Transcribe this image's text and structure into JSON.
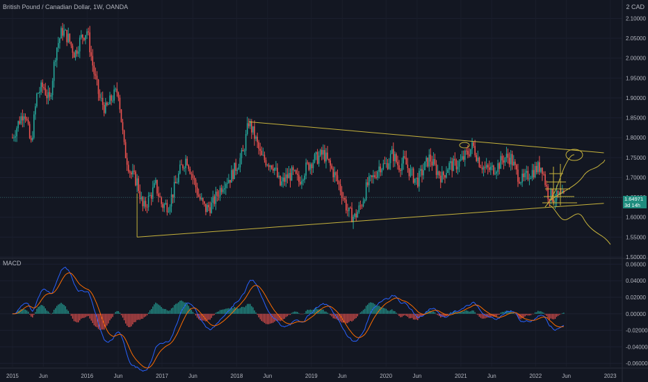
{
  "header": {
    "symbol": "British Pound / Canadian Dollar, 1W, OANDA",
    "currency": "2 CAD"
  },
  "price_tag": {
    "price": "1.64971",
    "countdown": "3d 14h"
  },
  "macd_title": "MACD",
  "chart_data": [
    {
      "type": "candlestick",
      "title": "British Pound / Canadian Dollar, 1W, OANDA",
      "y_ticks": [
        "2.10000",
        "2.05000",
        "2.00000",
        "1.95000",
        "1.90000",
        "1.85000",
        "1.80000",
        "1.75000",
        "1.70000",
        "1.65000",
        "1.60000",
        "1.55000",
        "1.50000"
      ],
      "x_ticks": [
        "2015",
        "Jun",
        "2016",
        "Jun",
        "2017",
        "Jun",
        "2018",
        "Jun",
        "2019",
        "Jun",
        "2020",
        "Jun",
        "2021",
        "Jun",
        "2022",
        "Jun",
        "2023"
      ],
      "ylim": [
        1.5,
        2.12
      ],
      "last_price": 1.64971,
      "close_series": [
        [
          "2015-01-01",
          1.8
        ],
        [
          "2015-02-01",
          1.84
        ],
        [
          "2015-03-01",
          1.87
        ],
        [
          "2015-04-01",
          1.78
        ],
        [
          "2015-05-01",
          1.91
        ],
        [
          "2015-06-01",
          1.93
        ],
        [
          "2015-07-01",
          1.89
        ],
        [
          "2015-08-01",
          2.02
        ],
        [
          "2015-09-01",
          2.07
        ],
        [
          "2015-10-01",
          2.05
        ],
        [
          "2015-11-01",
          2.01
        ],
        [
          "2015-12-01",
          2.05
        ],
        [
          "2016-01-01",
          2.07
        ],
        [
          "2016-02-01",
          1.97
        ],
        [
          "2016-03-01",
          1.9
        ],
        [
          "2016-04-01",
          1.87
        ],
        [
          "2016-05-01",
          1.9
        ],
        [
          "2016-06-01",
          1.92
        ],
        [
          "2016-07-01",
          1.77
        ],
        [
          "2016-08-01",
          1.71
        ],
        [
          "2016-09-01",
          1.69
        ],
        [
          "2016-10-01",
          1.62
        ],
        [
          "2016-11-01",
          1.65
        ],
        [
          "2016-12-01",
          1.68
        ],
        [
          "2017-01-01",
          1.63
        ],
        [
          "2017-02-01",
          1.63
        ],
        [
          "2017-03-01",
          1.67
        ],
        [
          "2017-04-01",
          1.72
        ],
        [
          "2017-05-01",
          1.75
        ],
        [
          "2017-06-01",
          1.7
        ],
        [
          "2017-07-01",
          1.65
        ],
        [
          "2017-08-01",
          1.62
        ],
        [
          "2017-09-01",
          1.63
        ],
        [
          "2017-10-01",
          1.66
        ],
        [
          "2017-11-01",
          1.69
        ],
        [
          "2017-12-01",
          1.7
        ],
        [
          "2018-01-01",
          1.73
        ],
        [
          "2018-02-01",
          1.76
        ],
        [
          "2018-03-01",
          1.84
        ],
        [
          "2018-04-01",
          1.8
        ],
        [
          "2018-05-01",
          1.75
        ],
        [
          "2018-06-01",
          1.74
        ],
        [
          "2018-07-01",
          1.73
        ],
        [
          "2018-08-01",
          1.68
        ],
        [
          "2018-09-01",
          1.7
        ],
        [
          "2018-10-01",
          1.71
        ],
        [
          "2018-11-01",
          1.69
        ],
        [
          "2018-12-01",
          1.72
        ],
        [
          "2019-01-01",
          1.74
        ],
        [
          "2019-02-01",
          1.75
        ],
        [
          "2019-03-01",
          1.76
        ],
        [
          "2019-04-01",
          1.73
        ],
        [
          "2019-05-01",
          1.7
        ],
        [
          "2019-06-01",
          1.66
        ],
        [
          "2019-07-01",
          1.61
        ],
        [
          "2019-08-01",
          1.6
        ],
        [
          "2019-09-01",
          1.63
        ],
        [
          "2019-10-01",
          1.68
        ],
        [
          "2019-11-01",
          1.7
        ],
        [
          "2019-12-01",
          1.73
        ],
        [
          "2020-01-01",
          1.73
        ],
        [
          "2020-02-01",
          1.76
        ],
        [
          "2020-03-01",
          1.73
        ],
        [
          "2020-04-01",
          1.74
        ],
        [
          "2020-05-01",
          1.71
        ],
        [
          "2020-06-01",
          1.69
        ],
        [
          "2020-07-01",
          1.72
        ],
        [
          "2020-08-01",
          1.75
        ],
        [
          "2020-09-01",
          1.72
        ],
        [
          "2020-10-01",
          1.7
        ],
        [
          "2020-11-01",
          1.73
        ],
        [
          "2020-12-01",
          1.73
        ],
        [
          "2021-01-01",
          1.74
        ],
        [
          "2021-02-01",
          1.76
        ],
        [
          "2021-03-01",
          1.78
        ],
        [
          "2021-04-01",
          1.74
        ],
        [
          "2021-05-01",
          1.72
        ],
        [
          "2021-06-01",
          1.72
        ],
        [
          "2021-07-01",
          1.73
        ],
        [
          "2021-08-01",
          1.75
        ],
        [
          "2021-09-01",
          1.75
        ],
        [
          "2021-10-01",
          1.71
        ],
        [
          "2021-11-01",
          1.69
        ],
        [
          "2021-12-01",
          1.71
        ],
        [
          "2022-01-01",
          1.72
        ],
        [
          "2022-02-01",
          1.73
        ],
        [
          "2022-03-01",
          1.66
        ],
        [
          "2022-04-01",
          1.65
        ],
        [
          "2022-05-01",
          1.65
        ]
      ],
      "trendlines": [
        {
          "points": [
            [
              "2018-03-01",
              1.84
            ],
            [
              "2022-12-01",
              1.762
            ]
          ]
        },
        {
          "points": [
            [
              "2016-09-01",
              1.55
            ],
            [
              "2022-12-01",
              1.635
            ]
          ]
        }
      ]
    },
    {
      "type": "macd",
      "title": "MACD",
      "y_ticks": [
        "0.06000",
        "0.04000",
        "0.02000",
        "0.00000",
        "-0.02000",
        "-0.04000",
        "-0.06000"
      ],
      "ylim": [
        -0.064,
        0.062
      ]
    }
  ],
  "colors": {
    "bg": "#131722",
    "up": "#26a69a",
    "down": "#ef5350",
    "macd": "#2962ff",
    "signal": "#ff6d00",
    "drawing": "#c8b43c",
    "tag": "#1e8c7e"
  }
}
